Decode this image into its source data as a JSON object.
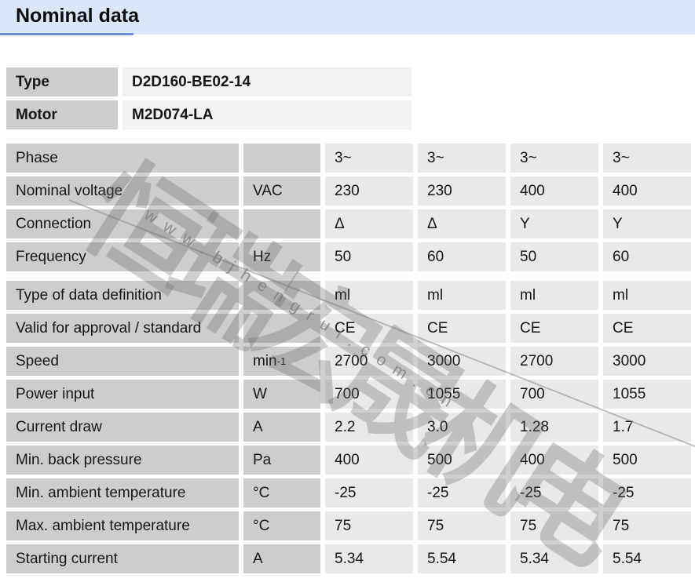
{
  "header": {
    "title": "Nominal data"
  },
  "identity": {
    "rows": [
      {
        "label": "Type",
        "value": "D2D160-BE02-14"
      },
      {
        "label": "Motor",
        "value": "M2D074-LA"
      }
    ]
  },
  "table": {
    "blocks": [
      {
        "rows": [
          {
            "label": "Phase",
            "unit": "",
            "values": [
              "3~",
              "3~",
              "3~",
              "3~"
            ]
          },
          {
            "label": "Nominal voltage",
            "unit": "VAC",
            "values": [
              "230",
              "230",
              "400",
              "400"
            ]
          },
          {
            "label": "Connection",
            "unit": "",
            "values": [
              "Δ",
              "Δ",
              "Y",
              "Y"
            ]
          },
          {
            "label": "Frequency",
            "unit": "Hz",
            "values": [
              "50",
              "60",
              "50",
              "60"
            ]
          }
        ]
      },
      {
        "rows": [
          {
            "label": "Type of data definition",
            "unit": "",
            "values": [
              "ml",
              "ml",
              "ml",
              "ml"
            ]
          },
          {
            "label": "Valid for approval / standard",
            "unit": "",
            "values": [
              "CE",
              "CE",
              "CE",
              "CE"
            ]
          },
          {
            "label": "Speed",
            "unit": "min",
            "unit_sup": "-1",
            "values": [
              "2700",
              "3000",
              "2700",
              "3000"
            ]
          },
          {
            "label": "Power input",
            "unit": "W",
            "values": [
              "700",
              "1055",
              "700",
              "1055"
            ]
          },
          {
            "label": "Current draw",
            "unit": "A",
            "values": [
              "2.2",
              "3.0",
              "1.28",
              "1.7"
            ]
          },
          {
            "label": "Min. back pressure",
            "unit": "Pa",
            "values": [
              "400",
              "500",
              "400",
              "500"
            ]
          },
          {
            "label": "Min. ambient temperature",
            "unit": "°C",
            "values": [
              "-25",
              "-25",
              "-25",
              "-25"
            ]
          },
          {
            "label": "Max. ambient temperature",
            "unit": "°C",
            "values": [
              "75",
              "75",
              "75",
              "75"
            ]
          },
          {
            "label": "Starting current",
            "unit": "A",
            "values": [
              "5.34",
              "5.54",
              "5.34",
              "5.54"
            ]
          }
        ]
      }
    ]
  },
  "watermark": {
    "cjk_text": "恒瑞宏晟机电",
    "url_text": "www.bjhengrui.com.cn"
  },
  "colors": {
    "header_bg": "#dbe6f9",
    "header_underline": "#6c8fd6",
    "label_cell": "#cdcdcd",
    "value_cell": "#e9e9e9",
    "identity_value_cell": "#f2f2f2",
    "text": "#161616",
    "watermark_gray": "#9b9b9b"
  }
}
